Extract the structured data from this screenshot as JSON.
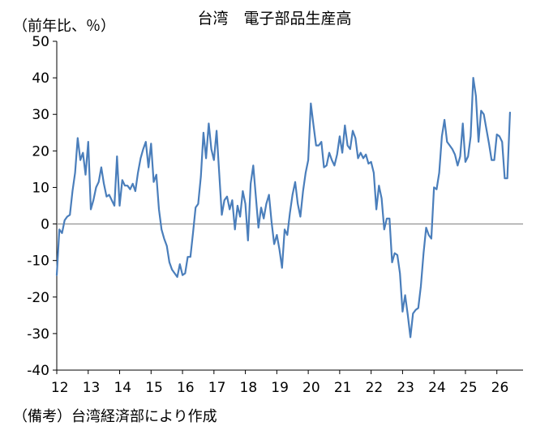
{
  "chart_data": {
    "type": "line",
    "title": "台湾　電子部品生産高",
    "unit_label": "（前年比、％）",
    "source_note": "（備考）台湾経済部により作成",
    "y_ticks": [
      "50",
      "40",
      "30",
      "20",
      "10",
      "0",
      "-10",
      "-20",
      "-30",
      "-40"
    ],
    "y_tick_values": [
      50,
      40,
      30,
      20,
      10,
      0,
      -10,
      -20,
      -30,
      -40
    ],
    "x_ticks": [
      "12",
      "13",
      "14",
      "15",
      "16",
      "17",
      "18",
      "19",
      "20",
      "21",
      "22",
      "23",
      "24",
      "25",
      "26"
    ],
    "ylim": [
      -40,
      50
    ],
    "xlim": [
      2012,
      2026.833
    ],
    "grid": false,
    "zero_line": true,
    "line_color": "#4a7ebb",
    "zero_line_color": "#8c8c8c",
    "series": [
      {
        "x_start": 2012,
        "step_months": 1,
        "values": [
          -14,
          -1.5,
          -2.5,
          1,
          2,
          2.5,
          9,
          14,
          23.5,
          17.5,
          19.5,
          13.5,
          22.5,
          4,
          6.5,
          10,
          11.5,
          15.5,
          11,
          7.5,
          8,
          6.5,
          5,
          18.5,
          5,
          12,
          10.5,
          10.5,
          9.5,
          11,
          9,
          14,
          18,
          20.5,
          22.5,
          15.5,
          22,
          11.5,
          13.5,
          4,
          -1.5,
          -4,
          -6,
          -10.5,
          -12.5,
          -13.5,
          -14.5,
          -11,
          -14,
          -13.5,
          -9,
          -9,
          -2.5,
          4.5,
          5.5,
          13,
          25,
          18,
          27.5,
          20.5,
          17.5,
          25.5,
          14,
          2.5,
          6.5,
          7.5,
          4,
          6.5,
          -1.5,
          5,
          2,
          9,
          5.5,
          -4.5,
          11,
          16,
          7.5,
          -1,
          4.5,
          1.5,
          5.5,
          8,
          0.5,
          -5.5,
          -3,
          -7,
          -12,
          -1.5,
          -3,
          3,
          8,
          11.5,
          5.5,
          2,
          9,
          14,
          17.5,
          33,
          27,
          21.5,
          21.5,
          22.5,
          15.5,
          16,
          19.5,
          17.5,
          16,
          19,
          24,
          19.5,
          27,
          21.5,
          20.5,
          25.5,
          23.5,
          18,
          19.5,
          18,
          19,
          16.5,
          17,
          14,
          4,
          10.5,
          7,
          -1.5,
          1.5,
          1.5,
          -10.5,
          -8,
          -8.5,
          -13.5,
          -24,
          -19.5,
          -25,
          -31,
          -24.5,
          -23.5,
          -23,
          -17,
          -8,
          -1,
          -3,
          -4,
          10,
          9.5,
          14,
          24,
          28.5,
          22.5,
          21.5,
          20.5,
          19,
          16,
          18.5,
          27.5,
          17,
          18.5,
          24,
          40,
          35,
          22.5,
          31,
          30,
          26,
          22,
          17.5,
          17.5,
          24.5,
          24,
          22.5,
          12.5,
          12.5,
          30.5
        ]
      }
    ]
  }
}
